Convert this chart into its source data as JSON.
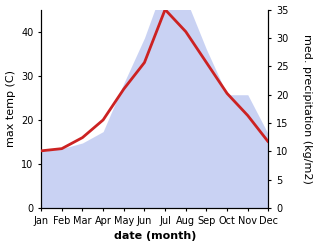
{
  "months": [
    "Jan",
    "Feb",
    "Mar",
    "Apr",
    "May",
    "Jun",
    "Jul",
    "Aug",
    "Sep",
    "Oct",
    "Nov",
    "Dec"
  ],
  "temp": [
    13.0,
    13.5,
    16.0,
    20.0,
    27.0,
    33.0,
    45.0,
    40.0,
    33.0,
    26.0,
    21.0,
    15.0
  ],
  "precip": [
    10.0,
    10.5,
    11.5,
    13.5,
    22.0,
    30.0,
    40.0,
    37.0,
    28.0,
    20.0,
    20.0,
    13.0
  ],
  "temp_color": "#cc2222",
  "precip_fill_color": "#b8c4f0",
  "precip_fill_alpha": 0.75,
  "xlabel": "date (month)",
  "ylabel_left": "max temp (C)",
  "ylabel_right": "med. precipitation (kg/m2)",
  "ylim_left": [
    0,
    45
  ],
  "ylim_right": [
    0,
    35
  ],
  "yticks_left": [
    0,
    10,
    20,
    30,
    40
  ],
  "yticks_right": [
    0,
    5,
    10,
    15,
    20,
    25,
    30,
    35
  ],
  "background_color": "#ffffff",
  "font_size": 8,
  "line_width": 2.0
}
